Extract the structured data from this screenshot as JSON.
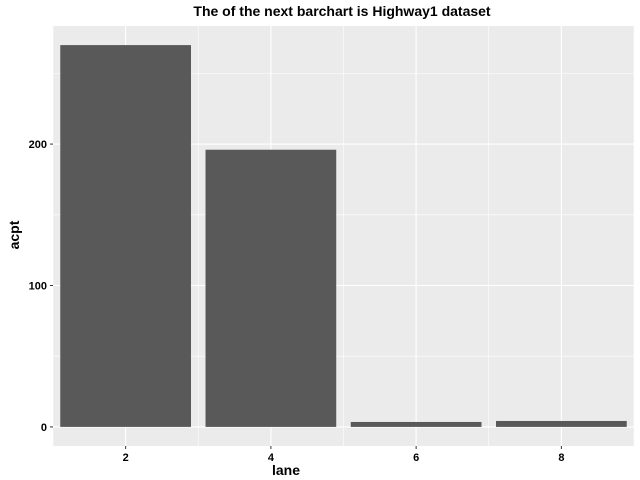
{
  "chart_data": {
    "type": "bar",
    "title": "The of the next barchart is Highway1 dataset",
    "xlabel": "lane",
    "ylabel": "acpt",
    "categories": [
      2,
      4,
      6,
      8
    ],
    "values": [
      270,
      196,
      3.5,
      4.2
    ],
    "x_ticks": [
      "2",
      "4",
      "6",
      "8"
    ],
    "y_ticks": [
      "0",
      "100",
      "200"
    ],
    "x_domain": [
      1,
      9
    ],
    "ylim": [
      -13.5,
      283.5
    ],
    "grid": true,
    "bar_color": "#595959",
    "panel_background": "#ebebeb",
    "grid_color": "#ffffff"
  }
}
